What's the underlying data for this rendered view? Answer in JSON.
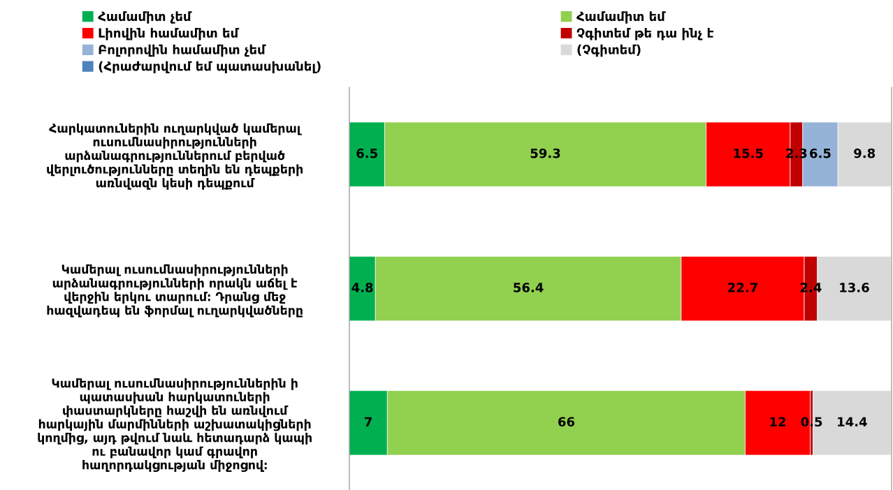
{
  "chart_data": {
    "type": "bar",
    "orientation": "horizontal",
    "stacked": true,
    "data_labels": true,
    "legend": "top",
    "grid": false,
    "tick_labels": "y",
    "xlim": [
      0,
      100
    ],
    "categories": [
      "Հարկատուներին ուղարկված կամերալ\nուսումնասիրությունների\nարձանագրություններում բերված\nվերլուծությունները տեղին են դեպքերի\nառնվազն կեսի դեպքում",
      "Կամերալ ուսումնասիրությունների\nարձանագրությունների որակն աճել է\nվերջին երկու տարում։ Դրանց մեջ\nհազվադեպ են ֆորմալ ուղարկվածները",
      "Կամերալ ուսումնասիրություններին ի\nպատասխան հարկատուների\nփաստարկները հաշվի են առնվում\nհարկային մարմինների աշխատակիցների\nկողմից, այդ թվում նաև հետադարձ կապի\nու բանավոր կամ գրավոր\nհաղորդակցության միջոցով։"
    ],
    "series": [
      {
        "name": "Համամիտ չեմ",
        "color": "#00b050",
        "values": [
          6.5,
          4.8,
          7
        ]
      },
      {
        "name": "Համամիտ եմ",
        "color": "#92d050",
        "values": [
          59.3,
          56.4,
          66
        ]
      },
      {
        "name": "Լիովին համամիտ եմ",
        "color": "#ff0000",
        "values": [
          15.5,
          22.7,
          12
        ]
      },
      {
        "name": "Չգիտեմ թե դա ինչ է",
        "color": "#c00000",
        "values": [
          2.3,
          2.4,
          0.5
        ]
      },
      {
        "name": "Բոլորովին համամիտ չեմ",
        "color": "#95b3d7",
        "values": [
          6.5,
          null,
          null
        ]
      },
      {
        "name": "(Չգիտեմ)",
        "color": "#d9d9d9",
        "values": [
          9.8,
          13.6,
          14.4
        ]
      },
      {
        "name": "(Հրաժարվում եմ պատասխանել)",
        "color": "#4f81bd",
        "values": [
          null,
          null,
          null
        ]
      }
    ]
  }
}
